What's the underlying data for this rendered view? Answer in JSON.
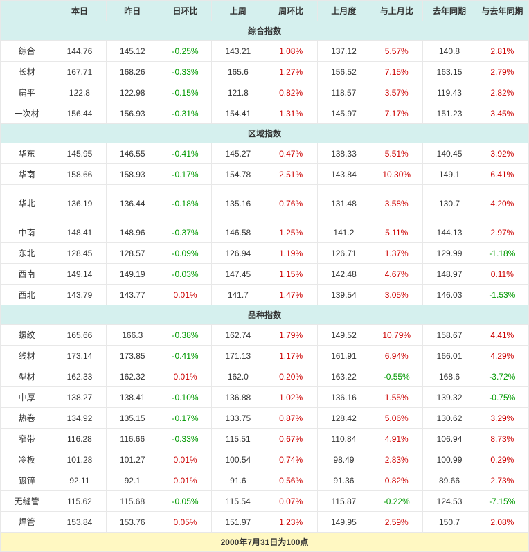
{
  "headers": [
    "",
    "本日",
    "昨日",
    "日环比",
    "上周",
    "周环比",
    "上月度",
    "与上月比",
    "去年同期",
    "与去年同期"
  ],
  "sections": [
    {
      "title": "综合指数",
      "rows": [
        {
          "label": "综合",
          "today": "144.76",
          "yesterday": "145.12",
          "dod": "-0.25%",
          "lastweek": "143.21",
          "wow": "1.08%",
          "lastmonth": "137.12",
          "mom": "5.57%",
          "lastyear": "140.8",
          "yoy": "2.81%",
          "dodSign": "neg",
          "wowSign": "pos",
          "momSign": "pos",
          "yoySign": "pos"
        },
        {
          "label": "长材",
          "today": "167.71",
          "yesterday": "168.26",
          "dod": "-0.33%",
          "lastweek": "165.6",
          "wow": "1.27%",
          "lastmonth": "156.52",
          "mom": "7.15%",
          "lastyear": "163.15",
          "yoy": "2.79%",
          "dodSign": "neg",
          "wowSign": "pos",
          "momSign": "pos",
          "yoySign": "pos"
        },
        {
          "label": "扁平",
          "today": "122.8",
          "yesterday": "122.98",
          "dod": "-0.15%",
          "lastweek": "121.8",
          "wow": "0.82%",
          "lastmonth": "118.57",
          "mom": "3.57%",
          "lastyear": "119.43",
          "yoy": "2.82%",
          "dodSign": "neg",
          "wowSign": "pos",
          "momSign": "pos",
          "yoySign": "pos"
        },
        {
          "label": "一次材",
          "today": "156.44",
          "yesterday": "156.93",
          "dod": "-0.31%",
          "lastweek": "154.41",
          "wow": "1.31%",
          "lastmonth": "145.97",
          "mom": "7.17%",
          "lastyear": "151.23",
          "yoy": "3.45%",
          "dodSign": "neg",
          "wowSign": "pos",
          "momSign": "pos",
          "yoySign": "pos"
        }
      ]
    },
    {
      "title": "区域指数",
      "rows": [
        {
          "label": "华东",
          "today": "145.95",
          "yesterday": "146.55",
          "dod": "-0.41%",
          "lastweek": "145.27",
          "wow": "0.47%",
          "lastmonth": "138.33",
          "mom": "5.51%",
          "lastyear": "140.45",
          "yoy": "3.92%",
          "dodSign": "neg",
          "wowSign": "pos",
          "momSign": "pos",
          "yoySign": "pos"
        },
        {
          "label": "华南",
          "today": "158.66",
          "yesterday": "158.93",
          "dod": "-0.17%",
          "lastweek": "154.78",
          "wow": "2.51%",
          "lastmonth": "143.84",
          "mom": "10.30%",
          "lastyear": "149.1",
          "yoy": "6.41%",
          "dodSign": "neg",
          "wowSign": "pos",
          "momSign": "pos",
          "yoySign": "pos"
        },
        {
          "label": "华北",
          "today": "136.19",
          "yesterday": "136.44",
          "dod": "-0.18%",
          "lastweek": "135.16",
          "wow": "0.76%",
          "lastmonth": "131.48",
          "mom": "3.58%",
          "lastyear": "130.7",
          "yoy": "4.20%",
          "dodSign": "neg",
          "wowSign": "pos",
          "momSign": "pos",
          "yoySign": "pos",
          "tall": true
        },
        {
          "label": "中南",
          "today": "148.41",
          "yesterday": "148.96",
          "dod": "-0.37%",
          "lastweek": "146.58",
          "wow": "1.25%",
          "lastmonth": "141.2",
          "mom": "5.11%",
          "lastyear": "144.13",
          "yoy": "2.97%",
          "dodSign": "neg",
          "wowSign": "pos",
          "momSign": "pos",
          "yoySign": "pos"
        },
        {
          "label": "东北",
          "today": "128.45",
          "yesterday": "128.57",
          "dod": "-0.09%",
          "lastweek": "126.94",
          "wow": "1.19%",
          "lastmonth": "126.71",
          "mom": "1.37%",
          "lastyear": "129.99",
          "yoy": "-1.18%",
          "dodSign": "neg",
          "wowSign": "pos",
          "momSign": "pos",
          "yoySign": "neg"
        },
        {
          "label": "西南",
          "today": "149.14",
          "yesterday": "149.19",
          "dod": "-0.03%",
          "lastweek": "147.45",
          "wow": "1.15%",
          "lastmonth": "142.48",
          "mom": "4.67%",
          "lastyear": "148.97",
          "yoy": "0.11%",
          "dodSign": "neg",
          "wowSign": "pos",
          "momSign": "pos",
          "yoySign": "pos"
        },
        {
          "label": "西北",
          "today": "143.79",
          "yesterday": "143.77",
          "dod": "0.01%",
          "lastweek": "141.7",
          "wow": "1.47%",
          "lastmonth": "139.54",
          "mom": "3.05%",
          "lastyear": "146.03",
          "yoy": "-1.53%",
          "dodSign": "pos",
          "wowSign": "pos",
          "momSign": "pos",
          "yoySign": "neg"
        }
      ]
    },
    {
      "title": "品种指数",
      "rows": [
        {
          "label": "螺纹",
          "today": "165.66",
          "yesterday": "166.3",
          "dod": "-0.38%",
          "lastweek": "162.74",
          "wow": "1.79%",
          "lastmonth": "149.52",
          "mom": "10.79%",
          "lastyear": "158.67",
          "yoy": "4.41%",
          "dodSign": "neg",
          "wowSign": "pos",
          "momSign": "pos",
          "yoySign": "pos"
        },
        {
          "label": "线材",
          "today": "173.14",
          "yesterday": "173.85",
          "dod": "-0.41%",
          "lastweek": "171.13",
          "wow": "1.17%",
          "lastmonth": "161.91",
          "mom": "6.94%",
          "lastyear": "166.01",
          "yoy": "4.29%",
          "dodSign": "neg",
          "wowSign": "pos",
          "momSign": "pos",
          "yoySign": "pos"
        },
        {
          "label": "型材",
          "today": "162.33",
          "yesterday": "162.32",
          "dod": "0.01%",
          "lastweek": "162.0",
          "wow": "0.20%",
          "lastmonth": "163.22",
          "mom": "-0.55%",
          "lastyear": "168.6",
          "yoy": "-3.72%",
          "dodSign": "pos",
          "wowSign": "pos",
          "momSign": "neg",
          "yoySign": "neg"
        },
        {
          "label": "中厚",
          "today": "138.27",
          "yesterday": "138.41",
          "dod": "-0.10%",
          "lastweek": "136.88",
          "wow": "1.02%",
          "lastmonth": "136.16",
          "mom": "1.55%",
          "lastyear": "139.32",
          "yoy": "-0.75%",
          "dodSign": "neg",
          "wowSign": "pos",
          "momSign": "pos",
          "yoySign": "neg"
        },
        {
          "label": "热卷",
          "today": "134.92",
          "yesterday": "135.15",
          "dod": "-0.17%",
          "lastweek": "133.75",
          "wow": "0.87%",
          "lastmonth": "128.42",
          "mom": "5.06%",
          "lastyear": "130.62",
          "yoy": "3.29%",
          "dodSign": "neg",
          "wowSign": "pos",
          "momSign": "pos",
          "yoySign": "pos"
        },
        {
          "label": "窄带",
          "today": "116.28",
          "yesterday": "116.66",
          "dod": "-0.33%",
          "lastweek": "115.51",
          "wow": "0.67%",
          "lastmonth": "110.84",
          "mom": "4.91%",
          "lastyear": "106.94",
          "yoy": "8.73%",
          "dodSign": "neg",
          "wowSign": "pos",
          "momSign": "pos",
          "yoySign": "pos"
        },
        {
          "label": "冷板",
          "today": "101.28",
          "yesterday": "101.27",
          "dod": "0.01%",
          "lastweek": "100.54",
          "wow": "0.74%",
          "lastmonth": "98.49",
          "mom": "2.83%",
          "lastyear": "100.99",
          "yoy": "0.29%",
          "dodSign": "pos",
          "wowSign": "pos",
          "momSign": "pos",
          "yoySign": "pos"
        },
        {
          "label": "镀锌",
          "today": "92.11",
          "yesterday": "92.1",
          "dod": "0.01%",
          "lastweek": "91.6",
          "wow": "0.56%",
          "lastmonth": "91.36",
          "mom": "0.82%",
          "lastyear": "89.66",
          "yoy": "2.73%",
          "dodSign": "pos",
          "wowSign": "pos",
          "momSign": "pos",
          "yoySign": "pos"
        },
        {
          "label": "无缝管",
          "today": "115.62",
          "yesterday": "115.68",
          "dod": "-0.05%",
          "lastweek": "115.54",
          "wow": "0.07%",
          "lastmonth": "115.87",
          "mom": "-0.22%",
          "lastyear": "124.53",
          "yoy": "-7.15%",
          "dodSign": "neg",
          "wowSign": "pos",
          "momSign": "neg",
          "yoySign": "neg"
        },
        {
          "label": "焊管",
          "today": "153.84",
          "yesterday": "153.76",
          "dod": "0.05%",
          "lastweek": "151.97",
          "wow": "1.23%",
          "lastmonth": "149.95",
          "mom": "2.59%",
          "lastyear": "150.7",
          "yoy": "2.08%",
          "dodSign": "pos",
          "wowSign": "pos",
          "momSign": "pos",
          "yoySign": "pos"
        }
      ]
    }
  ],
  "footer": "2000年7月31日为100点"
}
